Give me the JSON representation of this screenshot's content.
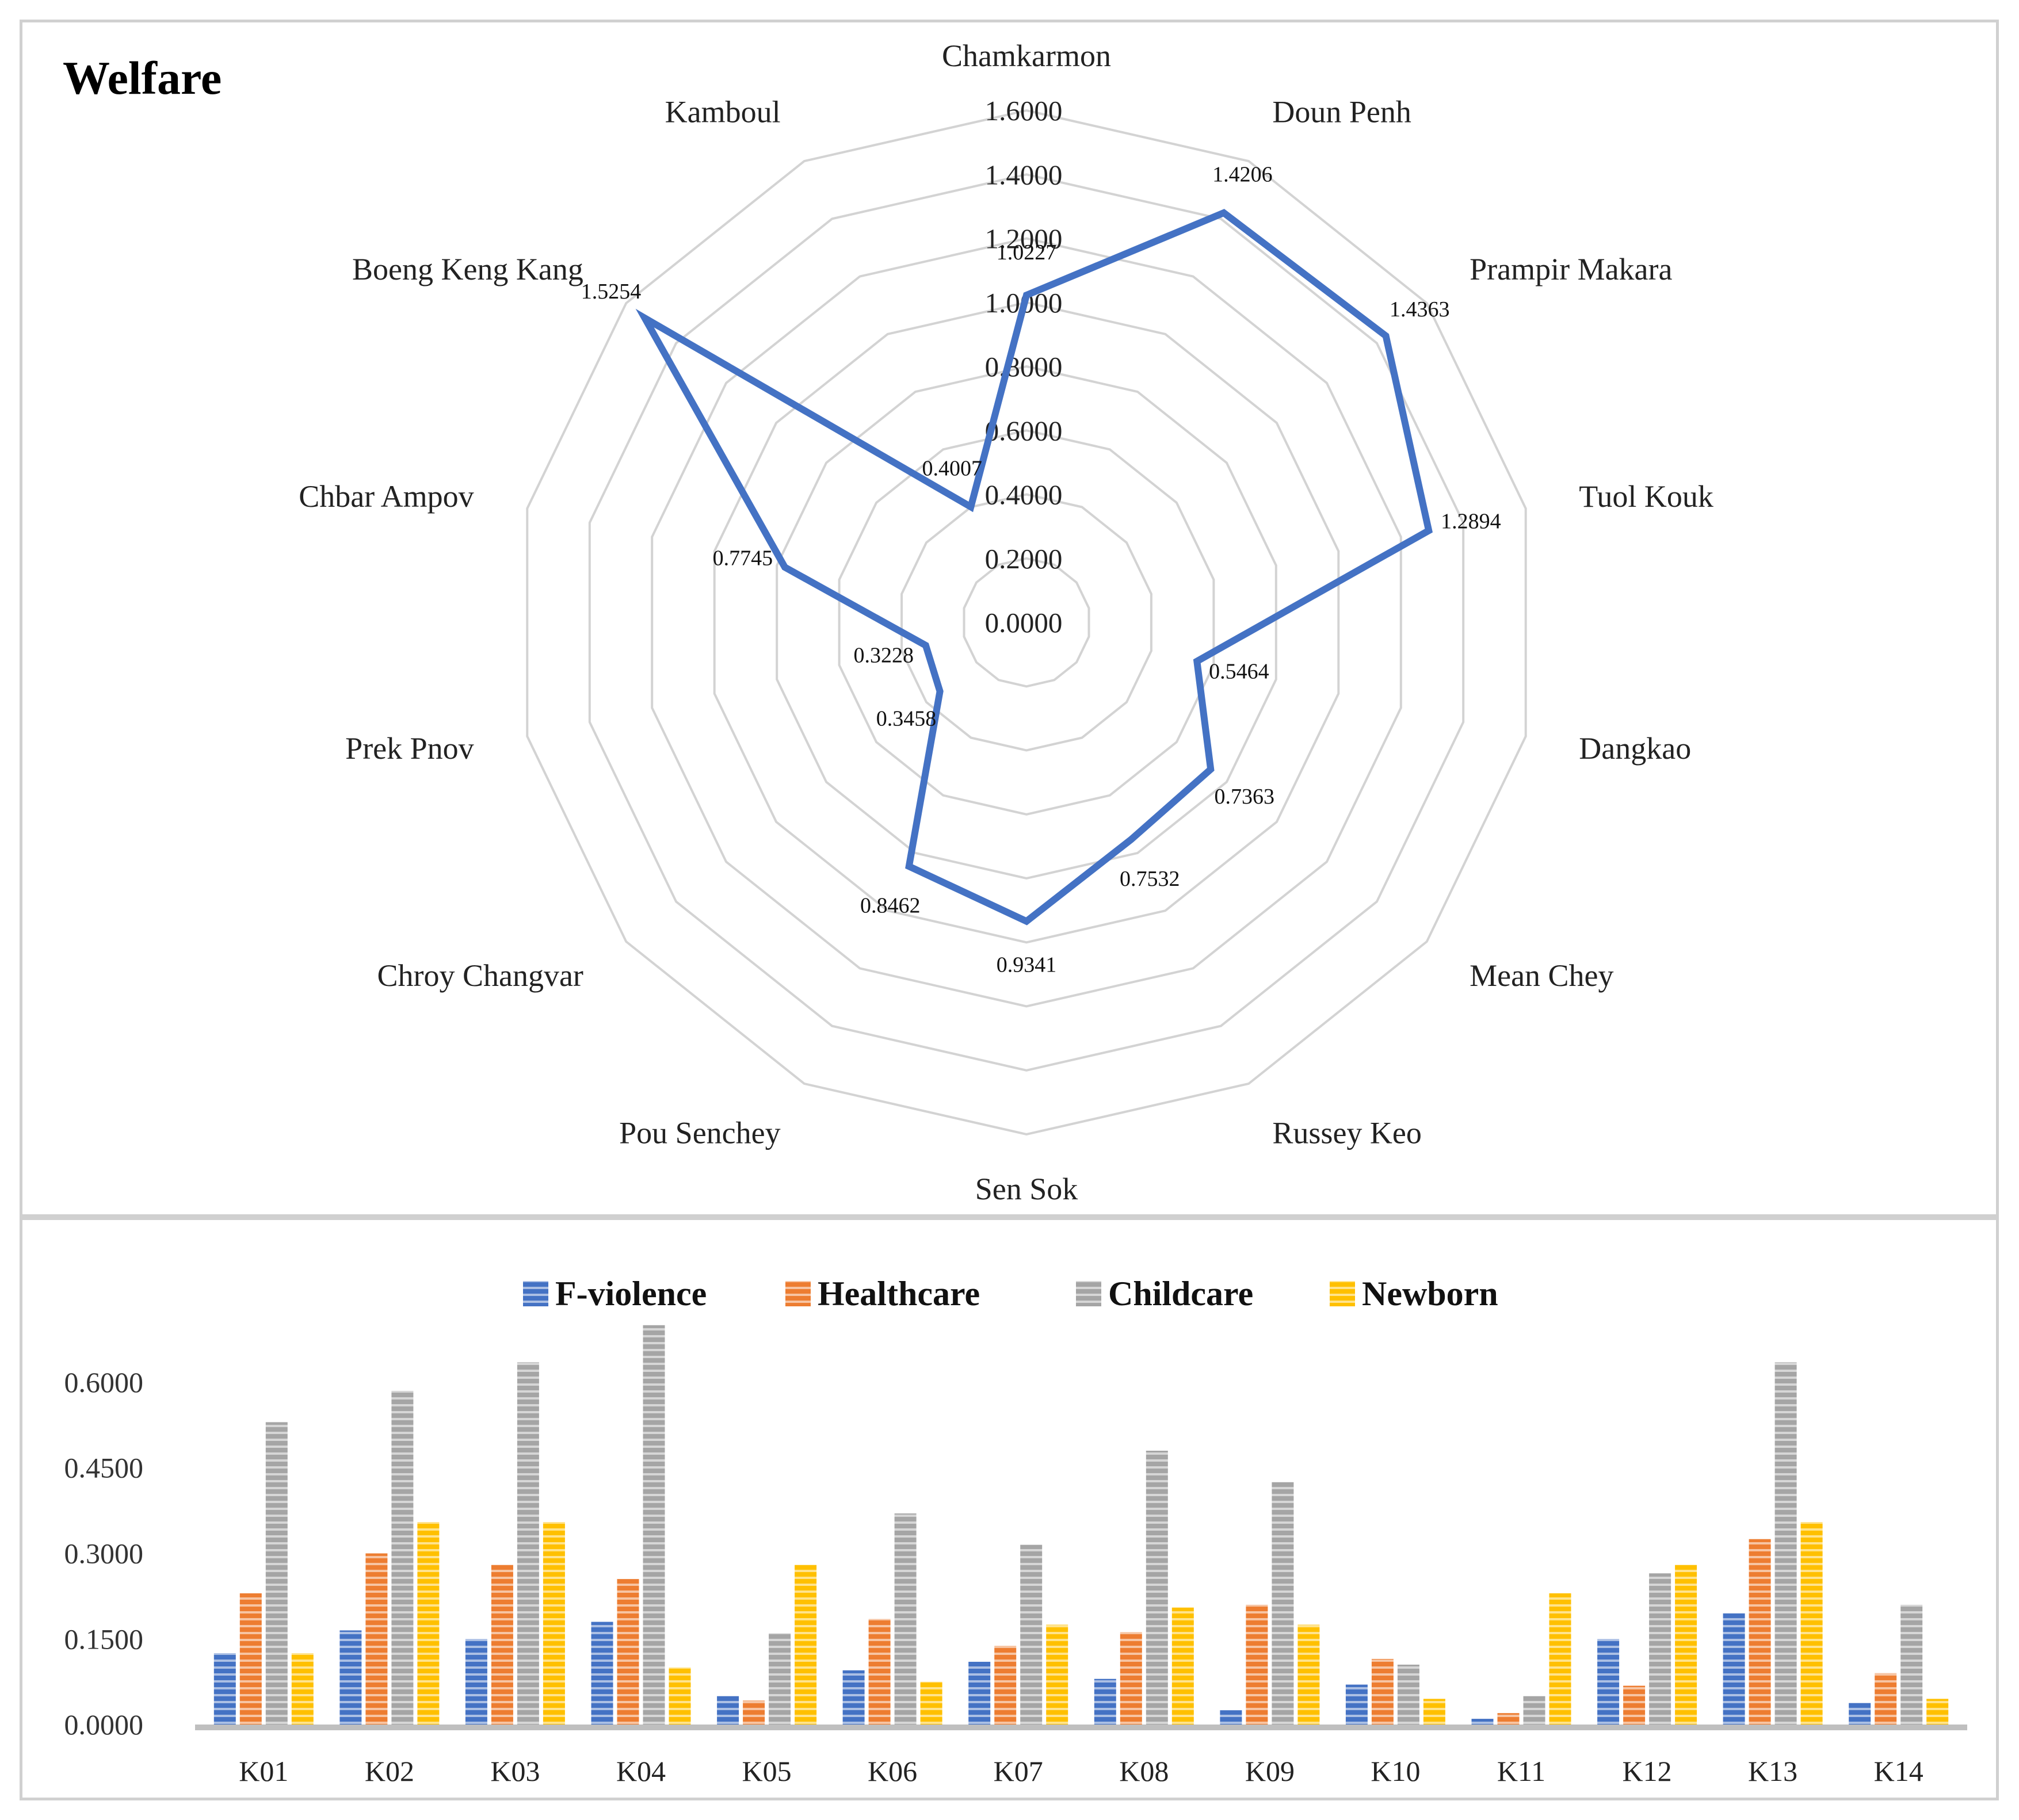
{
  "chart_data": [
    {
      "type": "radar",
      "title": "Welfare",
      "categories": [
        "Chamkarmon",
        "Doun Penh",
        "Prampir Makara",
        "Tuol Kouk",
        "Dangkao",
        "Mean Chey",
        "Russey Keo",
        "Sen Sok",
        "Pou Senchey",
        "Chroy Changvar",
        "Prek Pnov",
        "Chbar Ampov",
        "Boeng Keng Kang",
        "Kamboul"
      ],
      "values": [
        1.0227,
        1.4206,
        1.4363,
        1.2894,
        0.5464,
        0.7363,
        0.7532,
        0.9341,
        0.8462,
        0.3458,
        0.3228,
        0.7745,
        1.5254,
        0.4007
      ],
      "value_labels": [
        "1.0227",
        "1.4206",
        "1.4363",
        "1.2894",
        "0.5464",
        "0.7363",
        "0.7532",
        "0.9341",
        "0.8462",
        "0.3458",
        "0.3228",
        "0.7745",
        "1.5254",
        "0.4007"
      ],
      "rlim": [
        0,
        1.6
      ],
      "ticks": [
        "0.0000",
        "0.2000",
        "0.4000",
        "0.6000",
        "0.8000",
        "1.0000",
        "1.2000",
        "1.4000",
        "1.6000"
      ],
      "colors": {
        "series": "#4472C4",
        "grid": "#d3d3d3"
      }
    },
    {
      "type": "bar",
      "categories": [
        "K01",
        "K02",
        "K03",
        "K04",
        "K05",
        "K06",
        "K07",
        "K08",
        "K09",
        "K10",
        "K11",
        "K12",
        "K13",
        "K14"
      ],
      "series": [
        {
          "name": "F-violence",
          "color": "#4472C4",
          "values": [
            0.125,
            0.165,
            0.15,
            0.18,
            0.05,
            0.095,
            0.11,
            0.08,
            0.025,
            0.07,
            0.01,
            0.15,
            0.195,
            0.038
          ]
        },
        {
          "name": "Healthcare",
          "color": "#ED7D31",
          "values": [
            0.23,
            0.3,
            0.28,
            0.255,
            0.042,
            0.185,
            0.138,
            0.162,
            0.21,
            0.115,
            0.02,
            0.068,
            0.325,
            0.09
          ]
        },
        {
          "name": "Childcare",
          "color": "#A5A5A5",
          "values": [
            0.53,
            0.585,
            0.635,
            0.7,
            0.16,
            0.37,
            0.315,
            0.48,
            0.425,
            0.105,
            0.05,
            0.265,
            0.635,
            0.21
          ]
        },
        {
          "name": "Newborn",
          "color": "#FFC000",
          "values": [
            0.125,
            0.355,
            0.355,
            0.1,
            0.28,
            0.075,
            0.175,
            0.205,
            0.175,
            0.045,
            0.23,
            0.28,
            0.355,
            0.045
          ]
        }
      ],
      "ylim": [
        0,
        0.7
      ],
      "yticks": [
        "0.0000",
        "0.1500",
        "0.3000",
        "0.4500",
        "0.6000"
      ],
      "legend": "top",
      "grid": false,
      "colors": {
        "axis": "#bfbfbf"
      }
    }
  ]
}
